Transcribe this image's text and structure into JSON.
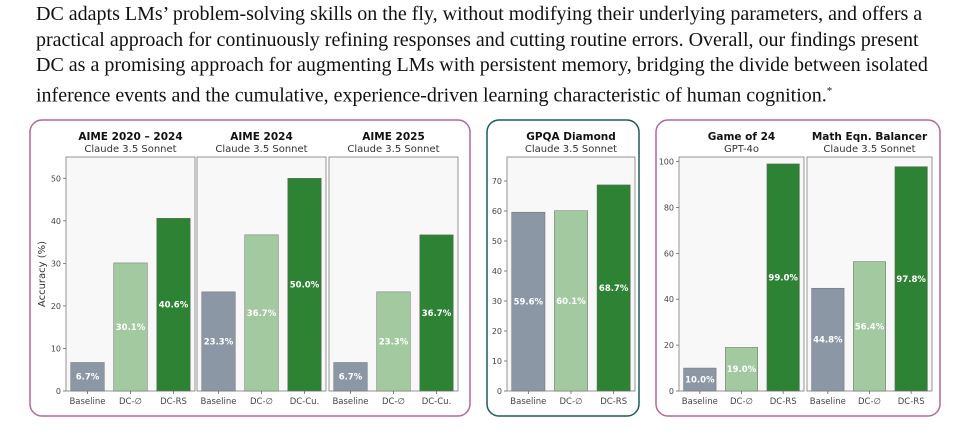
{
  "paragraph": {
    "text": "DC adapts LMs’ problem-solving skills on the fly, without modifying their underlying parameters, and offers a practical approach for continuously refining responses and cutting routine errors. Overall, our findings present DC as a promising approach for augmenting LMs with persistent memory, bridging the divide between isolated inference events and the cumulative, experience-driven learning characteristic of human cognition.",
    "footnote_mark": "*"
  },
  "colors": {
    "baseline": "#8c97a6",
    "dc_empty": "#a3c9a0",
    "dc_rs": "#2e8234",
    "group_border_math": "#b6679a",
    "group_border_gpqa": "#1f5b5a",
    "group_border_puzzle": "#b6679a",
    "plot_bg": "#f8f8f8"
  },
  "chart_data": [
    {
      "type": "bar",
      "group": "math",
      "title": "AIME 2020 – 2024",
      "subtitle": "Claude 3.5 Sonnet",
      "ylabel": "Accuracy (%)",
      "ylim": [
        0,
        55
      ],
      "yticks": [
        0,
        10,
        20,
        30,
        40,
        50
      ],
      "categories": [
        "Baseline",
        "DC-∅",
        "DC-RS"
      ],
      "values": [
        6.7,
        30.1,
        40.6
      ],
      "labels": [
        "6.7%",
        "30.1%",
        "40.6%"
      ]
    },
    {
      "type": "bar",
      "group": "math",
      "title": "AIME 2024",
      "subtitle": "Claude 3.5 Sonnet",
      "ylabel": "",
      "ylim": [
        0,
        55
      ],
      "yticks": [],
      "categories": [
        "Baseline",
        "DC-∅",
        "DC-Cu."
      ],
      "values": [
        23.3,
        36.7,
        50.0
      ],
      "labels": [
        "23.3%",
        "36.7%",
        "50.0%"
      ]
    },
    {
      "type": "bar",
      "group": "math",
      "title": "AIME 2025",
      "subtitle": "Claude 3.5 Sonnet",
      "ylabel": "",
      "ylim": [
        0,
        55
      ],
      "yticks": [],
      "categories": [
        "Baseline",
        "DC-∅",
        "DC-Cu."
      ],
      "values": [
        6.7,
        23.3,
        36.7
      ],
      "labels": [
        "6.7%",
        "23.3%",
        "36.7%"
      ]
    },
    {
      "type": "bar",
      "group": "gpqa",
      "title": "GPQA Diamond",
      "subtitle": "Claude 3.5 Sonnet",
      "ylabel": "",
      "ylim": [
        0,
        78
      ],
      "yticks": [
        0,
        10,
        20,
        30,
        40,
        50,
        60,
        70
      ],
      "categories": [
        "Baseline",
        "DC-∅",
        "DC-RS"
      ],
      "values": [
        59.6,
        60.1,
        68.7
      ],
      "labels": [
        "59.6%",
        "60.1%",
        "68.7%"
      ]
    },
    {
      "type": "bar",
      "group": "puzzle",
      "title": "Game of 24",
      "subtitle": "GPT-4o",
      "ylabel": "",
      "ylim": [
        0,
        102
      ],
      "yticks": [
        0,
        20,
        40,
        60,
        80,
        100
      ],
      "categories": [
        "Baseline",
        "DC-∅",
        "DC-RS"
      ],
      "values": [
        10.0,
        19.0,
        99.0
      ],
      "labels": [
        "10.0%",
        "19.0%",
        "99.0%"
      ]
    },
    {
      "type": "bar",
      "group": "puzzle",
      "title": "Math Eqn. Balancer",
      "subtitle": "Claude 3.5 Sonnet",
      "ylabel": "",
      "ylim": [
        0,
        102
      ],
      "yticks": [],
      "categories": [
        "Baseline",
        "DC-∅",
        "DC-RS"
      ],
      "values": [
        44.8,
        56.4,
        97.8
      ],
      "labels": [
        "44.8%",
        "56.4%",
        "97.8%"
      ]
    }
  ]
}
